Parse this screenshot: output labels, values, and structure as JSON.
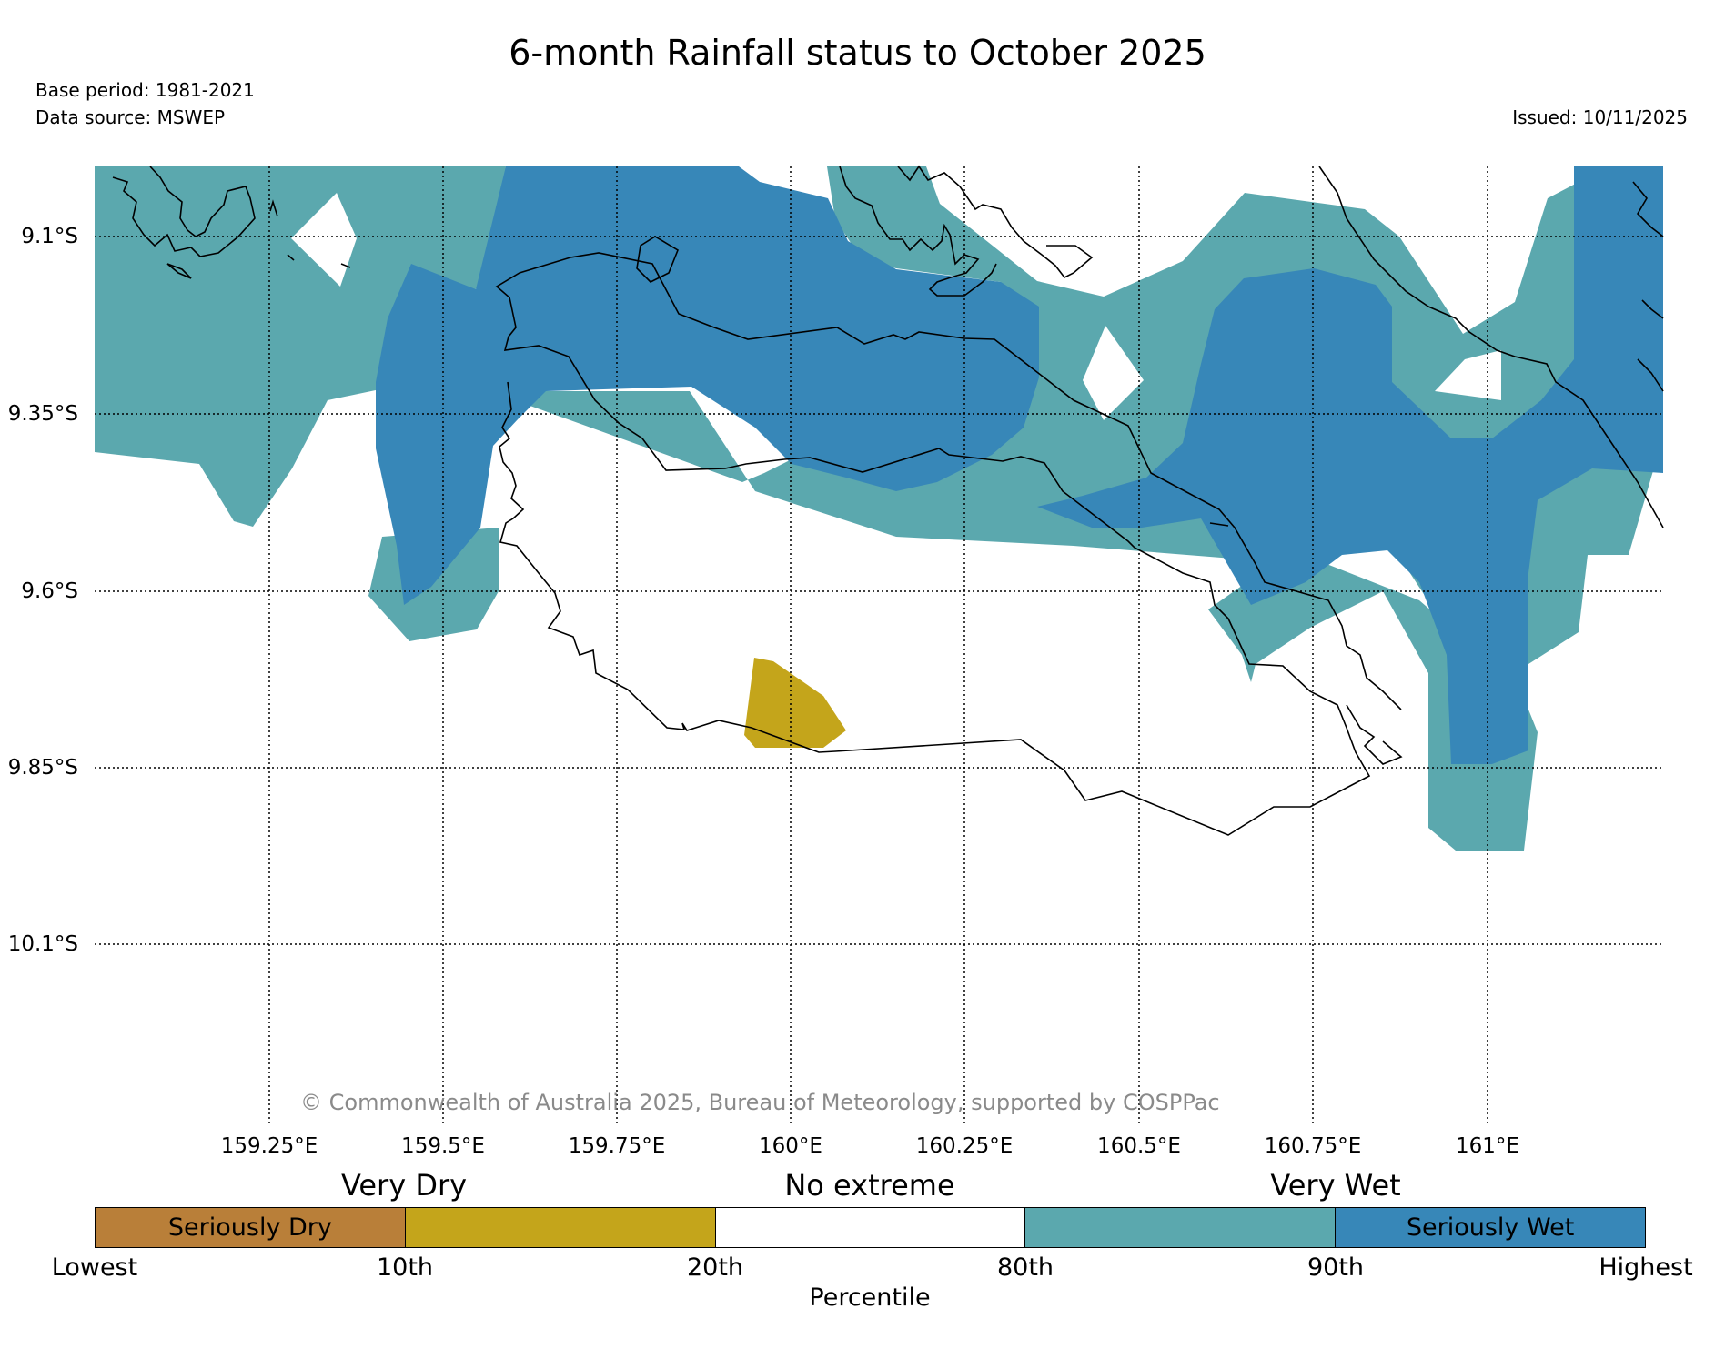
{
  "title": "6-month Rainfall status to October 2025",
  "base_period": "Base period: 1981-2021",
  "data_source": "Data source: MSWEP",
  "issued": "Issued: 10/11/2025",
  "copyright": "© Commonwealth of Australia 2025, Bureau of Meteorology, supported by COSPPac",
  "map": {
    "lon_labels": [
      "159.25°E",
      "159.5°E",
      "159.75°E",
      "160°E",
      "160.25°E",
      "160.5°E",
      "160.75°E",
      "161°E"
    ],
    "lat_labels": [
      "9.1°S",
      "9.35°S",
      "9.6°S",
      "9.85°S",
      "10.1°S"
    ]
  },
  "legend": {
    "categories": [
      "Very Dry",
      "No extreme",
      "Very Wet"
    ],
    "segments": [
      {
        "label": "Seriously Dry",
        "color": "#b97f39"
      },
      {
        "label": "",
        "color": "#c4a51b"
      },
      {
        "label": "",
        "color": "#ffffff"
      },
      {
        "label": "",
        "color": "#5ba8ae"
      },
      {
        "label": "Seriously Wet",
        "color": "#3787b8"
      }
    ],
    "ticks": [
      "Lowest",
      "10th",
      "20th",
      "80th",
      "90th",
      "Highest"
    ],
    "axis_title": "Percentile"
  },
  "colors": {
    "very_wet": "#5ba8ae",
    "seriously_wet": "#3787b8",
    "very_dry": "#c4a51b",
    "seriously_dry": "#b97f39"
  }
}
